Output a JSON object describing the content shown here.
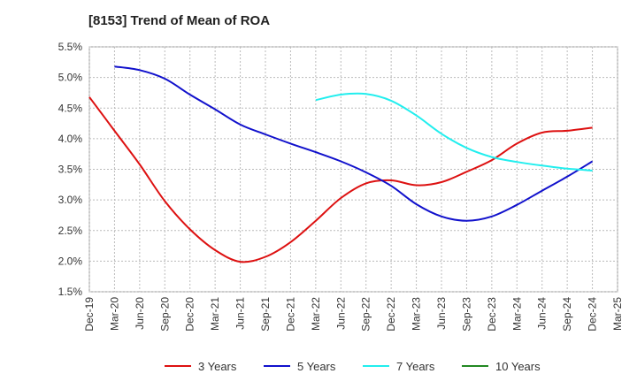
{
  "chart_data": {
    "type": "line",
    "title": "[8153]  Trend of Mean of ROA",
    "xlabel": "",
    "ylabel": "",
    "categories": [
      "Dec-19",
      "Mar-20",
      "Jun-20",
      "Sep-20",
      "Dec-20",
      "Mar-21",
      "Jun-21",
      "Sep-21",
      "Dec-21",
      "Mar-22",
      "Jun-22",
      "Sep-22",
      "Dec-22",
      "Mar-23",
      "Jun-23",
      "Sep-23",
      "Dec-23",
      "Mar-24",
      "Jun-24",
      "Sep-24",
      "Dec-24",
      "Mar-25"
    ],
    "ylim": [
      1.5,
      5.5
    ],
    "yticks": [
      "1.5%",
      "2.0%",
      "2.5%",
      "3.0%",
      "3.5%",
      "4.0%",
      "4.5%",
      "5.0%",
      "5.5%"
    ],
    "grid": true,
    "legend_position": "bottom",
    "series": [
      {
        "name": "3 Years",
        "color": "#dd1111",
        "values": [
          4.68,
          4.13,
          3.58,
          2.98,
          2.52,
          2.18,
          1.99,
          2.07,
          2.31,
          2.66,
          3.03,
          3.27,
          3.32,
          3.24,
          3.29,
          3.46,
          3.65,
          3.92,
          4.1,
          4.13,
          4.18,
          null
        ]
      },
      {
        "name": "5 Years",
        "color": "#1111cc",
        "values": [
          null,
          5.18,
          5.12,
          4.98,
          4.72,
          4.48,
          4.23,
          4.07,
          3.92,
          3.78,
          3.63,
          3.45,
          3.23,
          2.93,
          2.73,
          2.66,
          2.73,
          2.92,
          3.15,
          3.38,
          3.63,
          null
        ]
      },
      {
        "name": "7 Years",
        "color": "#22eeee",
        "values": [
          null,
          null,
          null,
          null,
          null,
          null,
          null,
          null,
          null,
          4.63,
          4.72,
          4.73,
          4.62,
          4.38,
          4.08,
          3.85,
          3.7,
          3.62,
          3.56,
          3.51,
          3.48,
          null
        ]
      },
      {
        "name": "10 Years",
        "color": "#228822",
        "values": [
          null,
          null,
          null,
          null,
          null,
          null,
          null,
          null,
          null,
          null,
          null,
          null,
          null,
          null,
          null,
          null,
          null,
          null,
          null,
          null,
          null,
          null
        ]
      }
    ]
  }
}
